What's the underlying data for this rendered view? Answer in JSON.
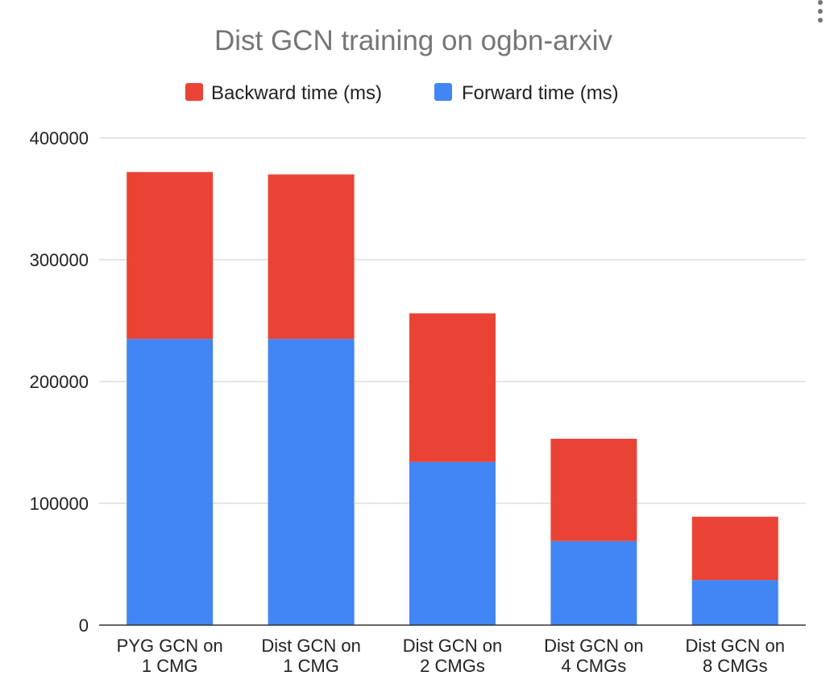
{
  "menu": {
    "icon": "more-vert-icon"
  },
  "chart_data": {
    "type": "bar",
    "stacked": true,
    "title": "Dist GCN training on ogbn-arxiv",
    "xlabel": "",
    "ylabel": "",
    "categories": [
      [
        "PYG GCN on",
        "1 CMG"
      ],
      [
        "Dist GCN on",
        "1 CMG"
      ],
      [
        "Dist GCN on",
        "2 CMGs"
      ],
      [
        "Dist GCN on",
        "4 CMGs"
      ],
      [
        "Dist GCN on",
        "8 CMGs"
      ]
    ],
    "series": [
      {
        "name": "Forward time (ms)",
        "color": "#4285f4",
        "values": [
          235000,
          235000,
          134000,
          69000,
          37000
        ]
      },
      {
        "name": "Backward time (ms)",
        "color": "#ea4335",
        "values": [
          137000,
          135000,
          122000,
          84000,
          52000
        ]
      }
    ],
    "legend_order": [
      1,
      0
    ],
    "legend_position": "top",
    "ylim": [
      0,
      400000
    ],
    "yticks": [
      0,
      100000,
      200000,
      300000,
      400000
    ],
    "ytick_labels": [
      "0",
      "100000",
      "200000",
      "300000",
      "400000"
    ],
    "grid": true
  }
}
